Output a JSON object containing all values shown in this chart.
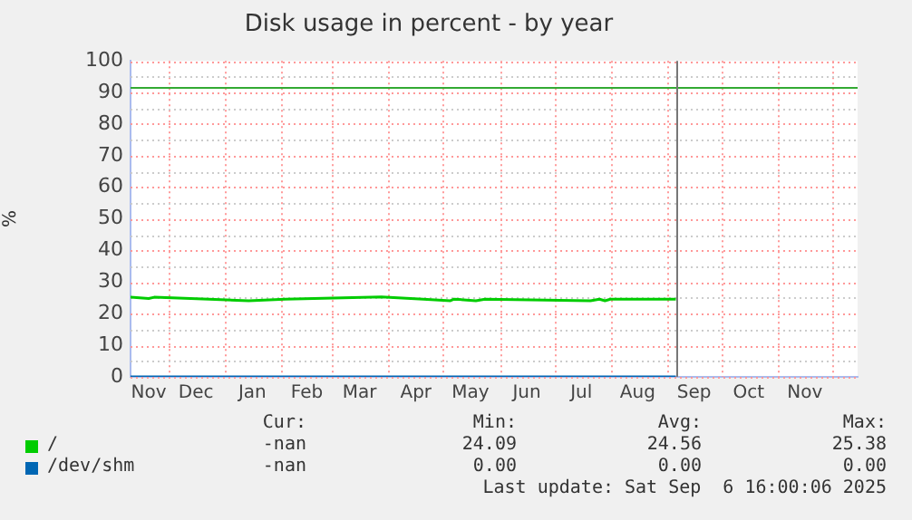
{
  "chart_data": {
    "type": "line",
    "title": "Disk usage in percent - by year",
    "ylabel": "%",
    "x": [
      "2024-11-10",
      "2024-11-20",
      "2024-11-23",
      "2024-12-23",
      "2025-01-14",
      "2025-02-03",
      "2025-03-28",
      "2025-04-20",
      "2025-05-05",
      "2025-05-07",
      "2025-05-19",
      "2025-05-24",
      "2025-07-21",
      "2025-07-26",
      "2025-07-29",
      "2025-08-01",
      "2025-09-06"
    ],
    "series": [
      {
        "name": "/",
        "color": "#00cc00",
        "values": [
          25.2,
          24.8,
          25.2,
          24.6,
          24.1,
          24.6,
          25.3,
          24.6,
          24.1,
          24.6,
          24.1,
          24.6,
          24.1,
          24.6,
          24.1,
          24.6,
          24.6
        ]
      },
      {
        "name": "/dev/shm",
        "color": "#0066b3",
        "values": [
          0,
          0,
          0,
          0,
          0,
          0,
          0,
          0,
          0,
          0,
          0,
          0,
          0,
          0,
          0,
          0,
          0
        ]
      }
    ],
    "xlim": [
      "2024-11-10",
      "2025-12-15"
    ],
    "xticks": [
      {
        "value": "2024-11-20",
        "label": "Nov"
      },
      {
        "value": "2024-12-01",
        "label": null
      },
      {
        "value": "2024-12-16",
        "label": "Dec"
      },
      {
        "value": "2025-01-01",
        "label": null
      },
      {
        "value": "2025-01-16",
        "label": "Jan"
      },
      {
        "value": "2025-02-01",
        "label": null
      },
      {
        "value": "2025-02-15",
        "label": "Feb"
      },
      {
        "value": "2025-03-01",
        "label": null
      },
      {
        "value": "2025-03-16",
        "label": "Mar"
      },
      {
        "value": "2025-04-01",
        "label": null
      },
      {
        "value": "2025-04-16",
        "label": "Apr"
      },
      {
        "value": "2025-05-01",
        "label": null
      },
      {
        "value": "2025-05-16",
        "label": "May"
      },
      {
        "value": "2025-06-01",
        "label": null
      },
      {
        "value": "2025-06-16",
        "label": "Jun"
      },
      {
        "value": "2025-07-01",
        "label": null
      },
      {
        "value": "2025-07-16",
        "label": "Jul"
      },
      {
        "value": "2025-08-01",
        "label": null
      },
      {
        "value": "2025-08-16",
        "label": "Aug"
      },
      {
        "value": "2025-09-01",
        "label": null
      },
      {
        "value": "2025-09-16",
        "label": "Sep"
      },
      {
        "value": "2025-10-01",
        "label": null
      },
      {
        "value": "2025-10-16",
        "label": "Oct"
      },
      {
        "value": "2025-11-01",
        "label": null
      },
      {
        "value": "2025-11-16",
        "label": "Nov"
      },
      {
        "value": "2025-12-01",
        "label": null
      }
    ],
    "ylim": [
      0,
      100
    ],
    "yticks": [
      0,
      {
        "value": 5,
        "label": null
      },
      10,
      {
        "value": 15,
        "label": null
      },
      20,
      {
        "value": 25,
        "label": null
      },
      30,
      {
        "value": 35,
        "label": null
      },
      40,
      {
        "value": 45,
        "label": null
      },
      50,
      {
        "value": 55,
        "label": null
      },
      60,
      {
        "value": 65,
        "label": null
      },
      70,
      {
        "value": 75,
        "label": null
      },
      80,
      {
        "value": 85,
        "label": null
      },
      90,
      {
        "value": 95,
        "label": null
      },
      100
    ],
    "grid": true,
    "legend": "bottom left",
    "marker": "none",
    "line_style": "solid",
    "ref_lines": [
      {
        "axis": "y",
        "value": 92,
        "color": "#33aa33"
      },
      {
        "axis": "x",
        "value": "2025-09-06",
        "color": "#777777"
      }
    ],
    "annotations": [
      "Cur:",
      "Min:",
      "Avg:",
      "Max:",
      "-nan",
      "24.09",
      "24.56",
      "25.38",
      "-nan",
      "0.00",
      "0.00",
      "0.00",
      "Last update: Sat Sep  6 16:00:06 2025"
    ]
  }
}
